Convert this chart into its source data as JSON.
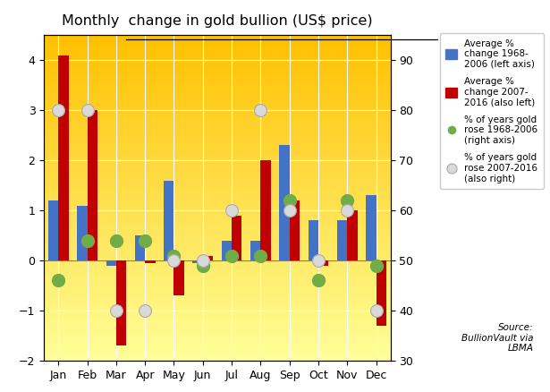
{
  "months": [
    "Jan",
    "Feb",
    "Mar",
    "Apr",
    "May",
    "Jun",
    "Jul",
    "Aug",
    "Sep",
    "Oct",
    "Nov",
    "Dec"
  ],
  "avg_1968_2006": [
    1.2,
    1.1,
    -0.1,
    0.5,
    1.6,
    -0.05,
    0.4,
    0.4,
    2.3,
    0.8,
    0.8,
    1.3
  ],
  "avg_2007_2016": [
    4.1,
    3.0,
    -1.7,
    -0.05,
    -0.7,
    0.1,
    0.9,
    2.0,
    1.2,
    -0.1,
    1.0,
    -1.3
  ],
  "pct_rose_1968_2006": [
    46,
    54,
    54,
    54,
    51,
    49,
    51,
    51,
    62,
    46,
    62,
    49
  ],
  "pct_rose_2007_2016": [
    80,
    80,
    40,
    40,
    50,
    50,
    60,
    80,
    60,
    50,
    60,
    40
  ],
  "title": "Monthly  change in gold bullion (US$ price)",
  "bar_color_1968": "#4472C4",
  "bar_color_2007": "#C00000",
  "dot_color_1968": "#70AD47",
  "dot_color_2007": "#D9D9D9",
  "bg_top": "#FFC000",
  "bg_bottom": "#FFFF99",
  "ylim_left": [
    -2.0,
    4.5
  ],
  "ylim_right": [
    30,
    95
  ],
  "source_text": "Source:\nBullionVault via\nLBMA"
}
